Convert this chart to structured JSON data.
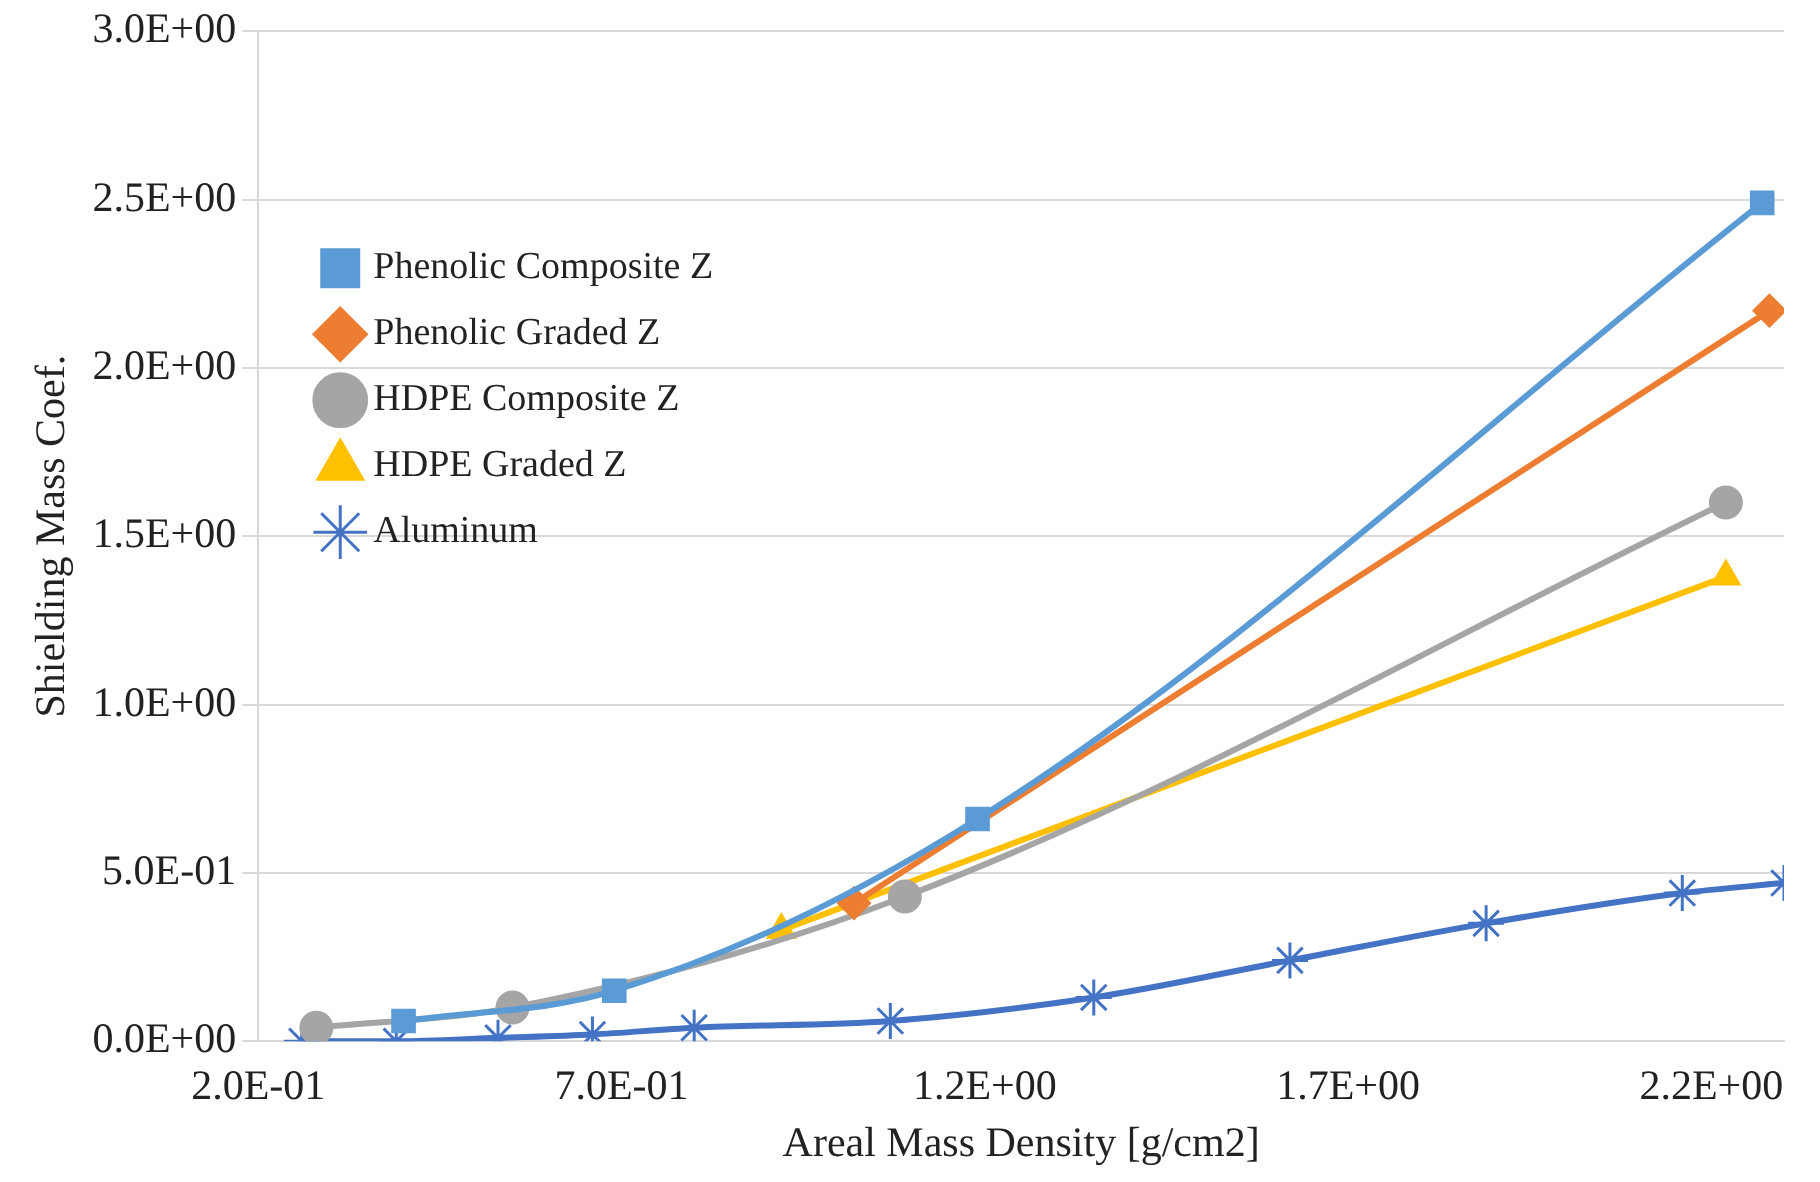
{
  "chart_data": {
    "type": "line",
    "xlabel": "Areal Mass Density [g/cm2]",
    "ylabel": "Shielding Mass Coef.",
    "xlim": [
      0.2,
      2.3
    ],
    "xticks": [
      {
        "value": 0.2,
        "label": "2.0E-01"
      },
      {
        "value": 0.7,
        "label": "7.0E-01"
      },
      {
        "value": 1.2,
        "label": "1.2E+00"
      },
      {
        "value": 1.7,
        "label": "1.7E+00"
      },
      {
        "value": 2.2,
        "label": "2.2E+00"
      }
    ],
    "ylim": [
      0,
      3
    ],
    "yticks": [
      {
        "value": 0,
        "label": "0.0E+00"
      },
      {
        "value": 0.5,
        "label": "5.0E-01"
      },
      {
        "value": 1,
        "label": "1.0E+00"
      },
      {
        "value": 1.5,
        "label": "1.5E+00"
      },
      {
        "value": 2,
        "label": "2.0E+00"
      },
      {
        "value": 2.5,
        "label": "2.5E+00"
      },
      {
        "value": 3,
        "label": "3.0E+00"
      }
    ],
    "grid": "y",
    "legend": "top left",
    "series": [
      {
        "name": "Phenolic Composite Z",
        "color": "#5b9bd5",
        "marker": "square",
        "x": [
          0.4,
          0.69,
          1.19,
          2.27
        ],
        "values": [
          0.06,
          0.15,
          0.66,
          2.49
        ]
      },
      {
        "name": "Phenolic Graded Z",
        "color": "#ed7d31",
        "marker": "diamond",
        "x": [
          1.02,
          2.28
        ],
        "values": [
          0.41,
          2.17
        ]
      },
      {
        "name": "HDPE Composite Z",
        "color": "#a5a5a5",
        "marker": "circle",
        "x": [
          0.28,
          0.55,
          1.09,
          2.22
        ],
        "values": [
          0.04,
          0.1,
          0.43,
          1.6
        ]
      },
      {
        "name": "HDPE Graded Z",
        "color": "#ffc000",
        "marker": "triangle",
        "x": [
          0.92,
          2.22
        ],
        "values": [
          0.33,
          1.38
        ]
      },
      {
        "name": "Aluminum",
        "color": "#4472c4",
        "marker": "cross",
        "x": [
          0.26,
          0.39,
          0.53,
          0.66,
          0.8,
          1.07,
          1.35,
          1.62,
          1.89,
          2.16,
          2.3
        ],
        "values": [
          0,
          0,
          0.01,
          0.02,
          0.04,
          0.06,
          0.13,
          0.24,
          0.35,
          0.44,
          0.47
        ]
      }
    ]
  }
}
